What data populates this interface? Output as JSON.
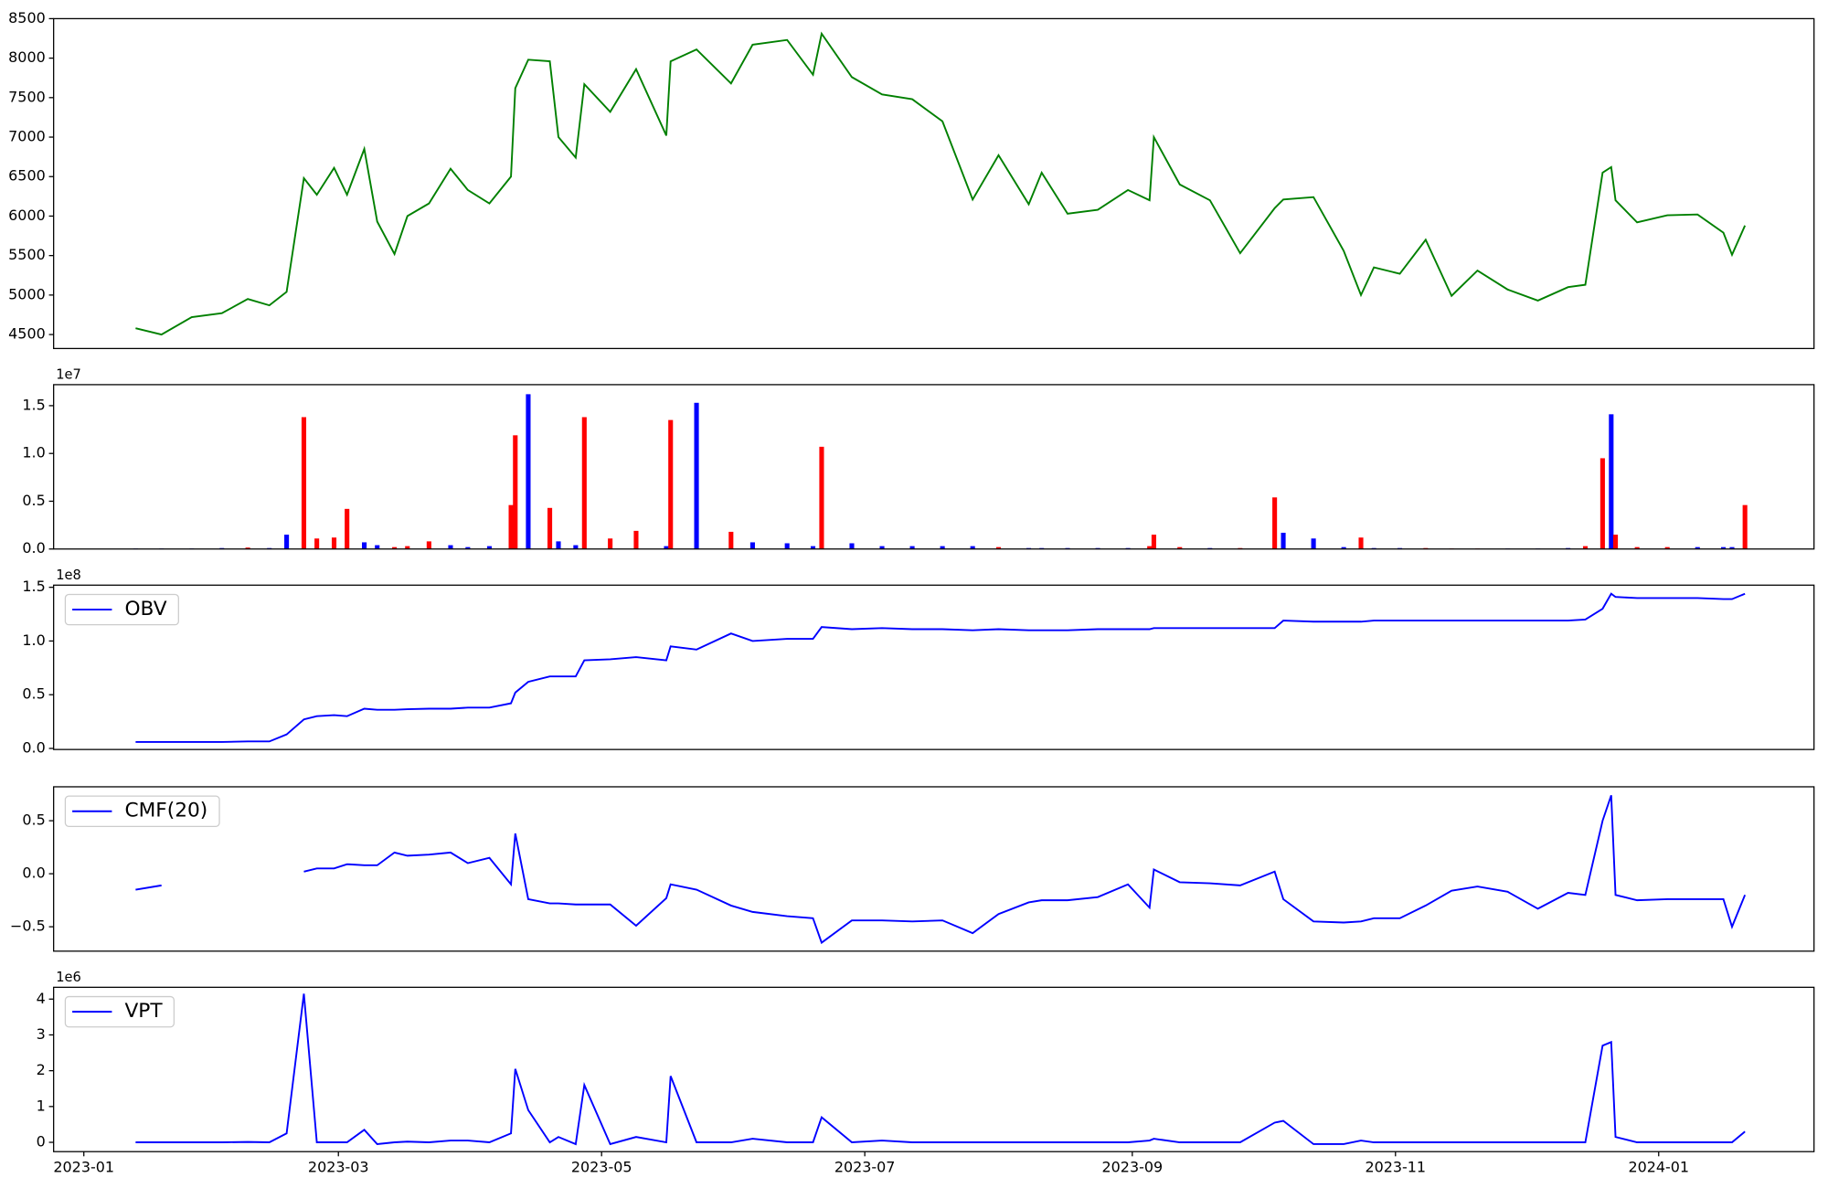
{
  "chart_data": [
    {
      "type": "line",
      "color": "#008000",
      "x": [
        "2023-01-13",
        "2023-01-19",
        "2023-01-26",
        "2023-02-02",
        "2023-02-08",
        "2023-02-13",
        "2023-02-17",
        "2023-02-21",
        "2023-02-24",
        "2023-02-28",
        "2023-03-03",
        "2023-03-07",
        "2023-03-10",
        "2023-03-14",
        "2023-03-17",
        "2023-03-22",
        "2023-03-27",
        "2023-03-31",
        "2023-04-05",
        "2023-04-10",
        "2023-04-11",
        "2023-04-14",
        "2023-04-19",
        "2023-04-21",
        "2023-04-25",
        "2023-04-27",
        "2023-05-03",
        "2023-05-09",
        "2023-05-16",
        "2023-05-17",
        "2023-05-23",
        "2023-05-31",
        "2023-06-05",
        "2023-06-13",
        "2023-06-19",
        "2023-06-21",
        "2023-06-28",
        "2023-07-05",
        "2023-07-12",
        "2023-07-19",
        "2023-07-26",
        "2023-08-01",
        "2023-08-08",
        "2023-08-11",
        "2023-08-17",
        "2023-08-24",
        "2023-08-31",
        "2023-09-05",
        "2023-09-06",
        "2023-09-12",
        "2023-09-19",
        "2023-09-26",
        "2023-10-04",
        "2023-10-06",
        "2023-10-13",
        "2023-10-20",
        "2023-10-24",
        "2023-10-27",
        "2023-11-02",
        "2023-11-08",
        "2023-11-14",
        "2023-11-20",
        "2023-11-27",
        "2023-12-04",
        "2023-12-11",
        "2023-12-15",
        "2023-12-19",
        "2023-12-21",
        "2023-12-22",
        "2023-12-27",
        "2024-01-03",
        "2024-01-10",
        "2024-01-16",
        "2024-01-18",
        "2024-01-21"
      ],
      "values": [
        4580,
        4500,
        4720,
        4770,
        4950,
        4870,
        5040,
        6480,
        6270,
        6610,
        6270,
        6850,
        5930,
        5520,
        6000,
        6160,
        6600,
        6330,
        6160,
        6500,
        7620,
        7980,
        7960,
        7000,
        6740,
        7670,
        7320,
        7860,
        7020,
        7960,
        8110,
        7680,
        8170,
        8230,
        7790,
        8310,
        7760,
        7540,
        7480,
        7200,
        6210,
        6770,
        6150,
        6550,
        6030,
        6080,
        6330,
        6200,
        7000,
        6400,
        6200,
        5530,
        6100,
        6210,
        6240,
        5560,
        5000,
        5350,
        5270,
        5700,
        4990,
        5310,
        5070,
        4930,
        5100,
        5130,
        6550,
        6620,
        6200,
        5920,
        6010,
        6020,
        5790,
        5510,
        5880
      ],
      "xlim": [
        "2022-12-25",
        "2024-02-06"
      ],
      "ylim": [
        4323,
        8500
      ],
      "yticks": [
        4500,
        5000,
        5500,
        6000,
        6500,
        7000,
        7500,
        8000,
        8500
      ]
    },
    {
      "type": "bar",
      "y_offset_label": "1e7",
      "x": [
        "2023-01-13",
        "2023-01-19",
        "2023-01-26",
        "2023-02-02",
        "2023-02-08",
        "2023-02-13",
        "2023-02-17",
        "2023-02-21",
        "2023-02-24",
        "2023-02-28",
        "2023-03-03",
        "2023-03-07",
        "2023-03-10",
        "2023-03-14",
        "2023-03-17",
        "2023-03-22",
        "2023-03-27",
        "2023-03-31",
        "2023-04-05",
        "2023-04-10",
        "2023-04-11",
        "2023-04-14",
        "2023-04-19",
        "2023-04-21",
        "2023-04-25",
        "2023-04-27",
        "2023-05-03",
        "2023-05-09",
        "2023-05-16",
        "2023-05-17",
        "2023-05-23",
        "2023-05-31",
        "2023-06-05",
        "2023-06-13",
        "2023-06-19",
        "2023-06-21",
        "2023-06-28",
        "2023-07-05",
        "2023-07-12",
        "2023-07-19",
        "2023-07-26",
        "2023-08-01",
        "2023-08-08",
        "2023-08-11",
        "2023-08-17",
        "2023-08-24",
        "2023-08-31",
        "2023-09-05",
        "2023-09-06",
        "2023-09-12",
        "2023-09-19",
        "2023-09-26",
        "2023-10-04",
        "2023-10-06",
        "2023-10-13",
        "2023-10-20",
        "2023-10-24",
        "2023-10-27",
        "2023-11-02",
        "2023-11-08",
        "2023-11-14",
        "2023-11-20",
        "2023-11-27",
        "2023-12-04",
        "2023-12-11",
        "2023-12-15",
        "2023-12-19",
        "2023-12-21",
        "2023-12-22",
        "2023-12-27",
        "2024-01-03",
        "2024-01-10",
        "2024-01-16",
        "2024-01-18",
        "2024-01-21"
      ],
      "values": [
        50000,
        50000,
        50000,
        100000,
        150000,
        100000,
        1500000,
        13800000,
        1100000,
        1200000,
        4200000,
        700000,
        400000,
        200000,
        300000,
        800000,
        400000,
        200000,
        300000,
        4600000,
        11900000,
        16200000,
        4300000,
        800000,
        400000,
        13800000,
        1100000,
        1900000,
        300000,
        13500000,
        15300000,
        1800000,
        700000,
        600000,
        300000,
        10700000,
        600000,
        300000,
        300000,
        300000,
        300000,
        200000,
        100000,
        100000,
        100000,
        100000,
        100000,
        300000,
        1500000,
        200000,
        100000,
        100000,
        5400000,
        1700000,
        1100000,
        200000,
        1200000,
        100000,
        100000,
        100000,
        50000,
        50000,
        50000,
        50000,
        100000,
        300000,
        9500000,
        14100000,
        1500000,
        200000,
        200000,
        200000,
        200000,
        200000,
        4600000
      ],
      "bar_colors": [
        "#0000ff",
        "#0000ff",
        "#0000ff",
        "#0000ff",
        "#ff0000",
        "#0000ff",
        "#0000ff",
        "#ff0000",
        "#ff0000",
        "#ff0000",
        "#ff0000",
        "#0000ff",
        "#0000ff",
        "#ff0000",
        "#ff0000",
        "#ff0000",
        "#0000ff",
        "#0000ff",
        "#0000ff",
        "#ff0000",
        "#ff0000",
        "#0000ff",
        "#ff0000",
        "#0000ff",
        "#0000ff",
        "#ff0000",
        "#ff0000",
        "#ff0000",
        "#0000ff",
        "#ff0000",
        "#0000ff",
        "#ff0000",
        "#0000ff",
        "#0000ff",
        "#0000ff",
        "#ff0000",
        "#0000ff",
        "#0000ff",
        "#0000ff",
        "#0000ff",
        "#0000ff",
        "#ff0000",
        "#0000ff",
        "#0000ff",
        "#0000ff",
        "#0000ff",
        "#0000ff",
        "#ff0000",
        "#ff0000",
        "#ff0000",
        "#0000ff",
        "#ff0000",
        "#ff0000",
        "#0000ff",
        "#0000ff",
        "#0000ff",
        "#ff0000",
        "#0000ff",
        "#0000ff",
        "#ff0000",
        "#ff0000",
        "#ff0000",
        "#0000ff",
        "#0000ff",
        "#0000ff",
        "#ff0000",
        "#ff0000",
        "#0000ff",
        "#ff0000",
        "#ff0000",
        "#ff0000",
        "#0000ff",
        "#0000ff",
        "#0000ff",
        "#ff0000"
      ],
      "xlim": [
        "2022-12-25",
        "2024-02-06"
      ],
      "ylim": [
        0,
        17200000
      ],
      "yticks": [
        {
          "value": 0,
          "label": "0.0"
        },
        {
          "value": 5000000,
          "label": "0.5"
        },
        {
          "value": 10000000,
          "label": "1.0"
        },
        {
          "value": 15000000,
          "label": "1.5"
        }
      ]
    },
    {
      "type": "line",
      "y_offset_label": "1e8",
      "legend": "upper left",
      "x": [
        "2023-01-13",
        "2023-01-19",
        "2023-01-26",
        "2023-02-02",
        "2023-02-08",
        "2023-02-13",
        "2023-02-17",
        "2023-02-21",
        "2023-02-24",
        "2023-02-28",
        "2023-03-03",
        "2023-03-07",
        "2023-03-10",
        "2023-03-14",
        "2023-03-17",
        "2023-03-22",
        "2023-03-27",
        "2023-03-31",
        "2023-04-05",
        "2023-04-10",
        "2023-04-11",
        "2023-04-14",
        "2023-04-19",
        "2023-04-21",
        "2023-04-25",
        "2023-04-27",
        "2023-05-03",
        "2023-05-09",
        "2023-05-16",
        "2023-05-17",
        "2023-05-23",
        "2023-05-31",
        "2023-06-05",
        "2023-06-13",
        "2023-06-19",
        "2023-06-21",
        "2023-06-28",
        "2023-07-05",
        "2023-07-12",
        "2023-07-19",
        "2023-07-26",
        "2023-08-01",
        "2023-08-08",
        "2023-08-11",
        "2023-08-17",
        "2023-08-24",
        "2023-08-31",
        "2023-09-05",
        "2023-09-06",
        "2023-09-12",
        "2023-09-19",
        "2023-09-26",
        "2023-10-04",
        "2023-10-06",
        "2023-10-13",
        "2023-10-20",
        "2023-10-24",
        "2023-10-27",
        "2023-11-02",
        "2023-11-08",
        "2023-11-14",
        "2023-11-20",
        "2023-11-27",
        "2023-12-04",
        "2023-12-11",
        "2023-12-15",
        "2023-12-19",
        "2023-12-21",
        "2023-12-22",
        "2023-12-27",
        "2024-01-03",
        "2024-01-10",
        "2024-01-16",
        "2024-01-18",
        "2024-01-21"
      ],
      "series": [
        {
          "name": "OBV",
          "color": "#0000ff",
          "values": [
            6000000,
            6000000,
            6000000,
            6000000,
            6500000,
            6500000,
            13000000,
            27000000,
            30000000,
            31000000,
            30000000,
            37000000,
            36000000,
            36000000,
            36500000,
            37000000,
            37000000,
            38000000,
            38000000,
            42000000,
            52000000,
            62000000,
            67000000,
            67000000,
            67000000,
            82000000,
            83000000,
            85000000,
            82000000,
            95000000,
            92000000,
            107000000,
            100000000,
            102000000,
            102000000,
            113000000,
            111000000,
            112000000,
            111000000,
            111000000,
            110000000,
            111000000,
            110000000,
            110000000,
            110000000,
            111000000,
            111000000,
            111000000,
            112000000,
            112000000,
            112000000,
            112000000,
            112000000,
            119000000,
            118000000,
            118000000,
            118000000,
            119000000,
            119000000,
            119000000,
            119000000,
            119000000,
            119000000,
            119000000,
            119000000,
            120000000,
            130000000,
            144000000,
            141000000,
            140000000,
            140000000,
            140000000,
            139000000,
            139000000,
            144000000
          ]
        }
      ],
      "xlim": [
        "2022-12-25",
        "2024-02-06"
      ],
      "ylim": [
        -1000000,
        152000000
      ],
      "yticks": [
        {
          "value": 0,
          "label": "0.0"
        },
        {
          "value": 50000000,
          "label": "0.5"
        },
        {
          "value": 100000000,
          "label": "1.0"
        },
        {
          "value": 150000000,
          "label": "1.5"
        }
      ]
    },
    {
      "type": "line",
      "legend": "upper left",
      "x": [
        "2023-01-13",
        "2023-01-19",
        "2023-01-26",
        "2023-02-02",
        "2023-02-08",
        "2023-02-13",
        "2023-02-17",
        "2023-02-21",
        "2023-02-24",
        "2023-02-28",
        "2023-03-03",
        "2023-03-07",
        "2023-03-10",
        "2023-03-14",
        "2023-03-17",
        "2023-03-22",
        "2023-03-27",
        "2023-03-31",
        "2023-04-05",
        "2023-04-10",
        "2023-04-11",
        "2023-04-14",
        "2023-04-19",
        "2023-04-21",
        "2023-04-25",
        "2023-04-27",
        "2023-05-03",
        "2023-05-09",
        "2023-05-16",
        "2023-05-17",
        "2023-05-23",
        "2023-05-31",
        "2023-06-05",
        "2023-06-13",
        "2023-06-19",
        "2023-06-21",
        "2023-06-28",
        "2023-07-05",
        "2023-07-12",
        "2023-07-19",
        "2023-07-26",
        "2023-08-01",
        "2023-08-08",
        "2023-08-11",
        "2023-08-17",
        "2023-08-24",
        "2023-08-31",
        "2023-09-05",
        "2023-09-06",
        "2023-09-12",
        "2023-09-19",
        "2023-09-26",
        "2023-10-04",
        "2023-10-06",
        "2023-10-13",
        "2023-10-20",
        "2023-10-24",
        "2023-10-27",
        "2023-11-02",
        "2023-11-08",
        "2023-11-14",
        "2023-11-20",
        "2023-11-27",
        "2023-12-04",
        "2023-12-11",
        "2023-12-15",
        "2023-12-19",
        "2023-12-21",
        "2023-12-22",
        "2023-12-27",
        "2024-01-03",
        "2024-01-10",
        "2024-01-16",
        "2024-01-18",
        "2024-01-21"
      ],
      "series": [
        {
          "name": "CMF(20)",
          "color": "#0000ff",
          "values": [
            -0.15,
            -0.11,
            null,
            null,
            null,
            null,
            null,
            0.02,
            0.05,
            0.05,
            0.09,
            0.08,
            0.08,
            0.2,
            0.17,
            0.18,
            0.2,
            0.1,
            0.15,
            -0.1,
            0.38,
            -0.24,
            -0.28,
            -0.28,
            -0.29,
            -0.29,
            -0.29,
            -0.49,
            -0.23,
            -0.1,
            -0.15,
            -0.3,
            -0.36,
            -0.4,
            -0.42,
            -0.65,
            -0.44,
            -0.44,
            -0.45,
            -0.44,
            -0.56,
            -0.38,
            -0.27,
            -0.25,
            -0.25,
            -0.22,
            -0.1,
            -0.32,
            0.04,
            -0.08,
            -0.09,
            -0.11,
            0.02,
            -0.24,
            -0.45,
            -0.46,
            -0.45,
            -0.42,
            -0.42,
            -0.3,
            -0.16,
            -0.12,
            -0.17,
            -0.33,
            -0.18,
            -0.2,
            0.5,
            0.74,
            -0.2,
            -0.25,
            -0.24,
            -0.24,
            -0.24,
            -0.5,
            -0.2
          ]
        }
      ],
      "xlim": [
        "2022-12-25",
        "2024-02-06"
      ],
      "ylim": [
        -0.73,
        0.82
      ],
      "yticks": [
        {
          "value": -0.5,
          "label": "−0.5"
        },
        {
          "value": 0,
          "label": "0.0"
        },
        0.5
      ]
    },
    {
      "type": "line",
      "y_offset_label": "1e6",
      "legend": "upper left",
      "x": [
        "2023-01-13",
        "2023-01-19",
        "2023-01-26",
        "2023-02-02",
        "2023-02-08",
        "2023-02-13",
        "2023-02-17",
        "2023-02-21",
        "2023-02-24",
        "2023-02-28",
        "2023-03-03",
        "2023-03-07",
        "2023-03-10",
        "2023-03-14",
        "2023-03-17",
        "2023-03-22",
        "2023-03-27",
        "2023-03-31",
        "2023-04-05",
        "2023-04-10",
        "2023-04-11",
        "2023-04-14",
        "2023-04-19",
        "2023-04-21",
        "2023-04-25",
        "2023-04-27",
        "2023-05-03",
        "2023-05-09",
        "2023-05-16",
        "2023-05-17",
        "2023-05-23",
        "2023-05-31",
        "2023-06-05",
        "2023-06-13",
        "2023-06-19",
        "2023-06-21",
        "2023-06-28",
        "2023-07-05",
        "2023-07-12",
        "2023-07-19",
        "2023-07-26",
        "2023-08-01",
        "2023-08-08",
        "2023-08-11",
        "2023-08-17",
        "2023-08-24",
        "2023-08-31",
        "2023-09-05",
        "2023-09-06",
        "2023-09-12",
        "2023-09-19",
        "2023-09-26",
        "2023-10-04",
        "2023-10-06",
        "2023-10-13",
        "2023-10-20",
        "2023-10-24",
        "2023-10-27",
        "2023-11-02",
        "2023-11-08",
        "2023-11-14",
        "2023-11-20",
        "2023-11-27",
        "2023-12-04",
        "2023-12-11",
        "2023-12-15",
        "2023-12-19",
        "2023-12-21",
        "2023-12-22",
        "2023-12-27",
        "2024-01-03",
        "2024-01-10",
        "2024-01-16",
        "2024-01-18",
        "2024-01-21"
      ],
      "series": [
        {
          "name": "VPT",
          "color": "#0000ff",
          "values": [
            0,
            0,
            0,
            0,
            10000,
            0,
            250000,
            4150000,
            0,
            0,
            0,
            350000,
            -50000,
            0,
            20000,
            0,
            50000,
            50000,
            0,
            250000,
            2050000,
            900000,
            0,
            150000,
            -50000,
            1600000,
            -50000,
            150000,
            0,
            1850000,
            0,
            0,
            100000,
            0,
            0,
            700000,
            0,
            50000,
            0,
            0,
            0,
            0,
            0,
            0,
            0,
            0,
            0,
            50000,
            100000,
            0,
            0,
            0,
            550000,
            600000,
            -50000,
            -50000,
            50000,
            0,
            0,
            0,
            0,
            0,
            0,
            0,
            0,
            0,
            2700000,
            2800000,
            150000,
            0,
            0,
            0,
            0,
            0,
            300000
          ]
        }
      ],
      "xlim": [
        "2022-12-25",
        "2024-02-06"
      ],
      "ylim": [
        -260000,
        4330000
      ],
      "yticks": [
        0,
        1000000,
        2000000,
        3000000,
        4000000
      ],
      "ytick_labels": [
        "0",
        "1",
        "2",
        "3",
        "4"
      ],
      "xticks": [
        {
          "value": "2023-01-01",
          "label": "2023-01"
        },
        {
          "value": "2023-03-01",
          "label": "2023-03"
        },
        {
          "value": "2023-05-01",
          "label": "2023-05"
        },
        {
          "value": "2023-07-01",
          "label": "2023-07"
        },
        {
          "value": "2023-09-01",
          "label": "2023-09"
        },
        {
          "value": "2023-11-01",
          "label": "2023-11"
        },
        {
          "value": "2024-01-01",
          "label": "2024-01"
        }
      ]
    }
  ]
}
